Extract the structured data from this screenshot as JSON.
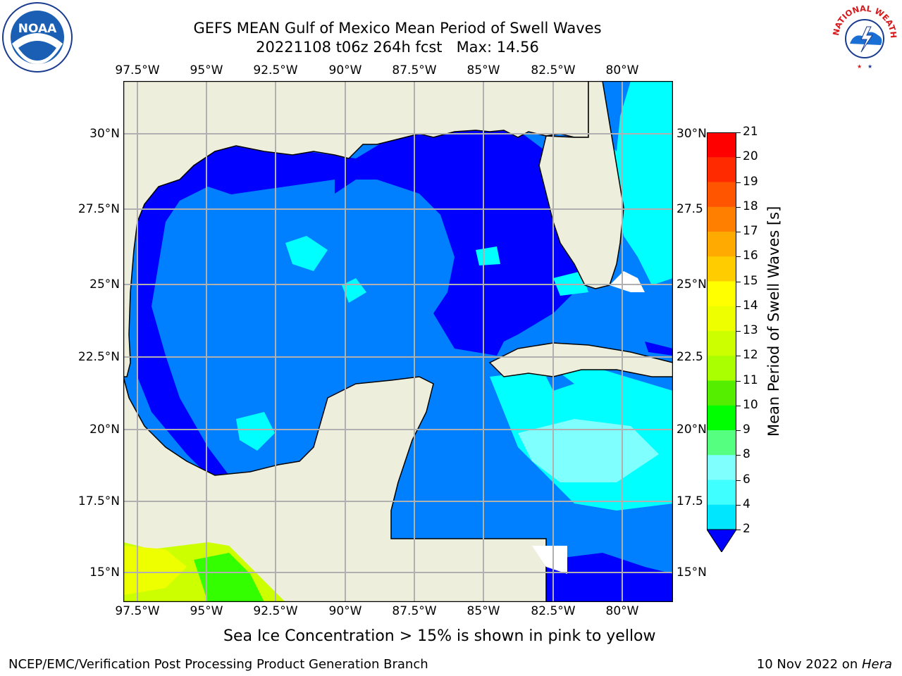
{
  "title": {
    "line1": "GEFS MEAN Gulf of Mexico Mean Period of Swell Waves",
    "line2": "20221108 t06z 264h fcst   Max: 14.56"
  },
  "logos": {
    "left": "noaa-logo",
    "right": "national-weather-service-logo",
    "left_text": "NOAA",
    "right_text": "NATIONAL WEATHER SERVICE"
  },
  "map": {
    "lon_labels": [
      "97.5°W",
      "95°W",
      "92.5°W",
      "90°W",
      "87.5°W",
      "85°W",
      "82.5°W",
      "80°W"
    ],
    "lat_labels_left": [
      "30°N",
      "27.5°N",
      "25°N",
      "22.5°N",
      "20°N",
      "17.5°N",
      "15°N"
    ],
    "lat_labels_right": [
      "30°N",
      "27.5",
      "25°N",
      "22.5",
      "20°N",
      "17.5",
      "15°N"
    ],
    "colors": {
      "land": "#eeeedd",
      "grid": "#b0b0b0",
      "deep_blue": "#0000ff",
      "blue": "#0080ff",
      "cyan": "#00ffff",
      "light_cyan": "#80ffff",
      "yellow_green": "#ccff00",
      "green": "#33ff00"
    }
  },
  "colorbar": {
    "title": "Mean Period of Swell Waves [s]",
    "ticks": [
      "2",
      "4",
      "6",
      "8",
      "9",
      "10",
      "11",
      "12",
      "13",
      "14",
      "15",
      "16",
      "17",
      "18",
      "19",
      "20",
      "21"
    ],
    "colors": [
      "#0000ff",
      "#0080ff",
      "#00e6ff",
      "#40ffff",
      "#80ffff",
      "#55ff80",
      "#00ff00",
      "#55ee00",
      "#aaff00",
      "#ccff00",
      "#eeff00",
      "#ffff00",
      "#ffcc00",
      "#ffaa00",
      "#ff8000",
      "#ff5500",
      "#ff2a00",
      "#ff0000"
    ]
  },
  "caption": "Sea Ice Concentration > 15% is shown in pink to yellow",
  "footer": {
    "left": "NCEP/EMC/Verification Post Processing Product Generation Branch",
    "right_date": "10 Nov 2022 on ",
    "right_host": "Hera"
  }
}
